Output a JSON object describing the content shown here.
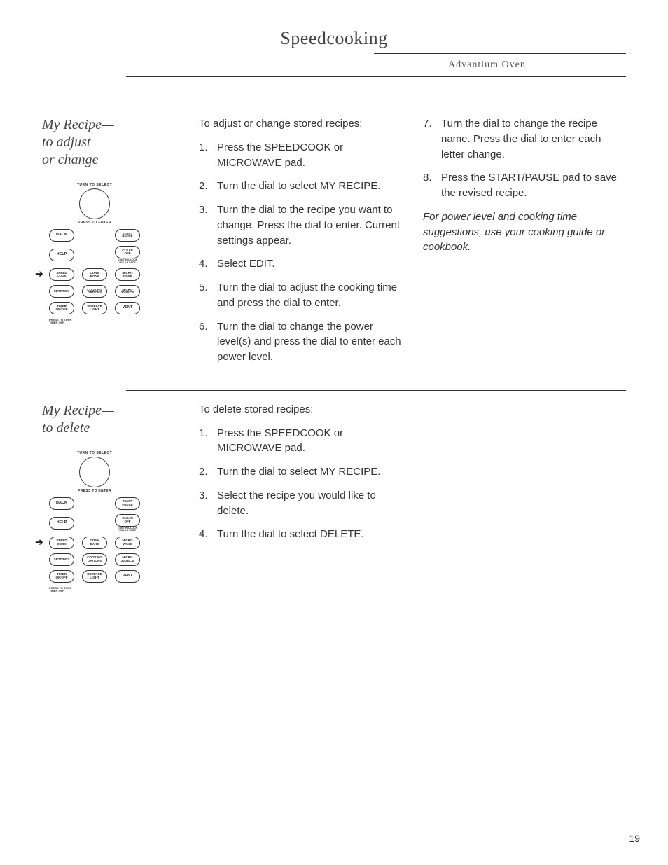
{
  "header": {
    "title": "Speedcooking",
    "subtitle": "Advantium Oven"
  },
  "section1": {
    "heading": "My Recipe—\nto adjust\nor change",
    "intro": "To adjust or change stored recipes:",
    "steps_a": [
      "Press the SPEEDCOOK or MICROWAVE pad.",
      "Turn the dial to select MY RECIPE.",
      "Turn the dial to the recipe you want to change. Press the dial to enter. Current settings appear.",
      "Select EDIT.",
      "Turn the dial to adjust the cooking time and press the dial to enter.",
      "Turn the dial to change the power level(s) and press the dial to enter each power level."
    ],
    "steps_b": [
      "Turn the dial to change the recipe name.  Press the dial to enter each letter change.",
      "Press the START/PAUSE pad to save the revised recipe."
    ],
    "note": "For power level and cooking time suggestions, use your cooking guide or cookbook."
  },
  "section2": {
    "heading": "My Recipe—\nto delete",
    "intro": "To delete stored recipes:",
    "steps": [
      "Press the SPEEDCOOK or MICROWAVE pad.",
      "Turn the dial to select MY RECIPE.",
      "Select the recipe you would like to delete.",
      "Turn the dial to select DELETE."
    ]
  },
  "panel": {
    "dial_top": "TURN TO SELECT",
    "dial_bottom": "PRESS TO ENTER",
    "buttons": {
      "back": "BACK",
      "start": "START\nPAUSE",
      "help": "HELP",
      "clear": "CLEAR\nOFF",
      "clear_sub": "CONTROL LOCK\nHOLD 3 SECS",
      "speed": "SPEED\nCOOK",
      "conv": "CONV\nBAKE",
      "micro": "MICRO\nWAVE",
      "settings": "SETTINGS",
      "options": "COOKING\nOPTIONS",
      "micro30": "MICRO\n30 SECS",
      "timer": "TIMER\nON/OFF",
      "surface": "SURFACE\nLIGHT",
      "vent": "VENT"
    },
    "bottom_text": "PRESS TO TURN\nTIMER OFF"
  },
  "page_number": "19"
}
